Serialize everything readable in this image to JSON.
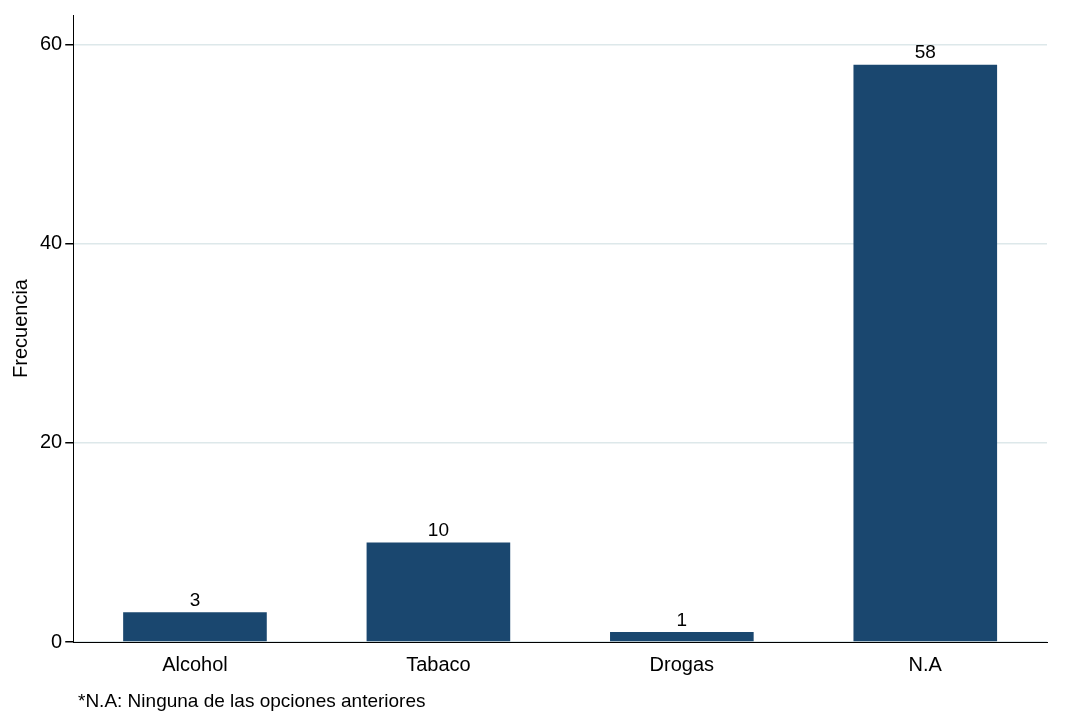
{
  "chart_data": {
    "type": "bar",
    "ylabel": "Frecuencia",
    "categories": [
      "Alcohol",
      "Tabaco",
      "Drogas",
      "N.A"
    ],
    "values": [
      3,
      10,
      1,
      58
    ],
    "color": "#1a476f",
    "ylim": [
      0,
      63
    ],
    "yticks": [
      0,
      20,
      40,
      60
    ],
    "grid": "y",
    "data_labels": true,
    "legend": false,
    "annotations": [
      "*N.A: Ninguna de las opciones anteriores"
    ]
  }
}
